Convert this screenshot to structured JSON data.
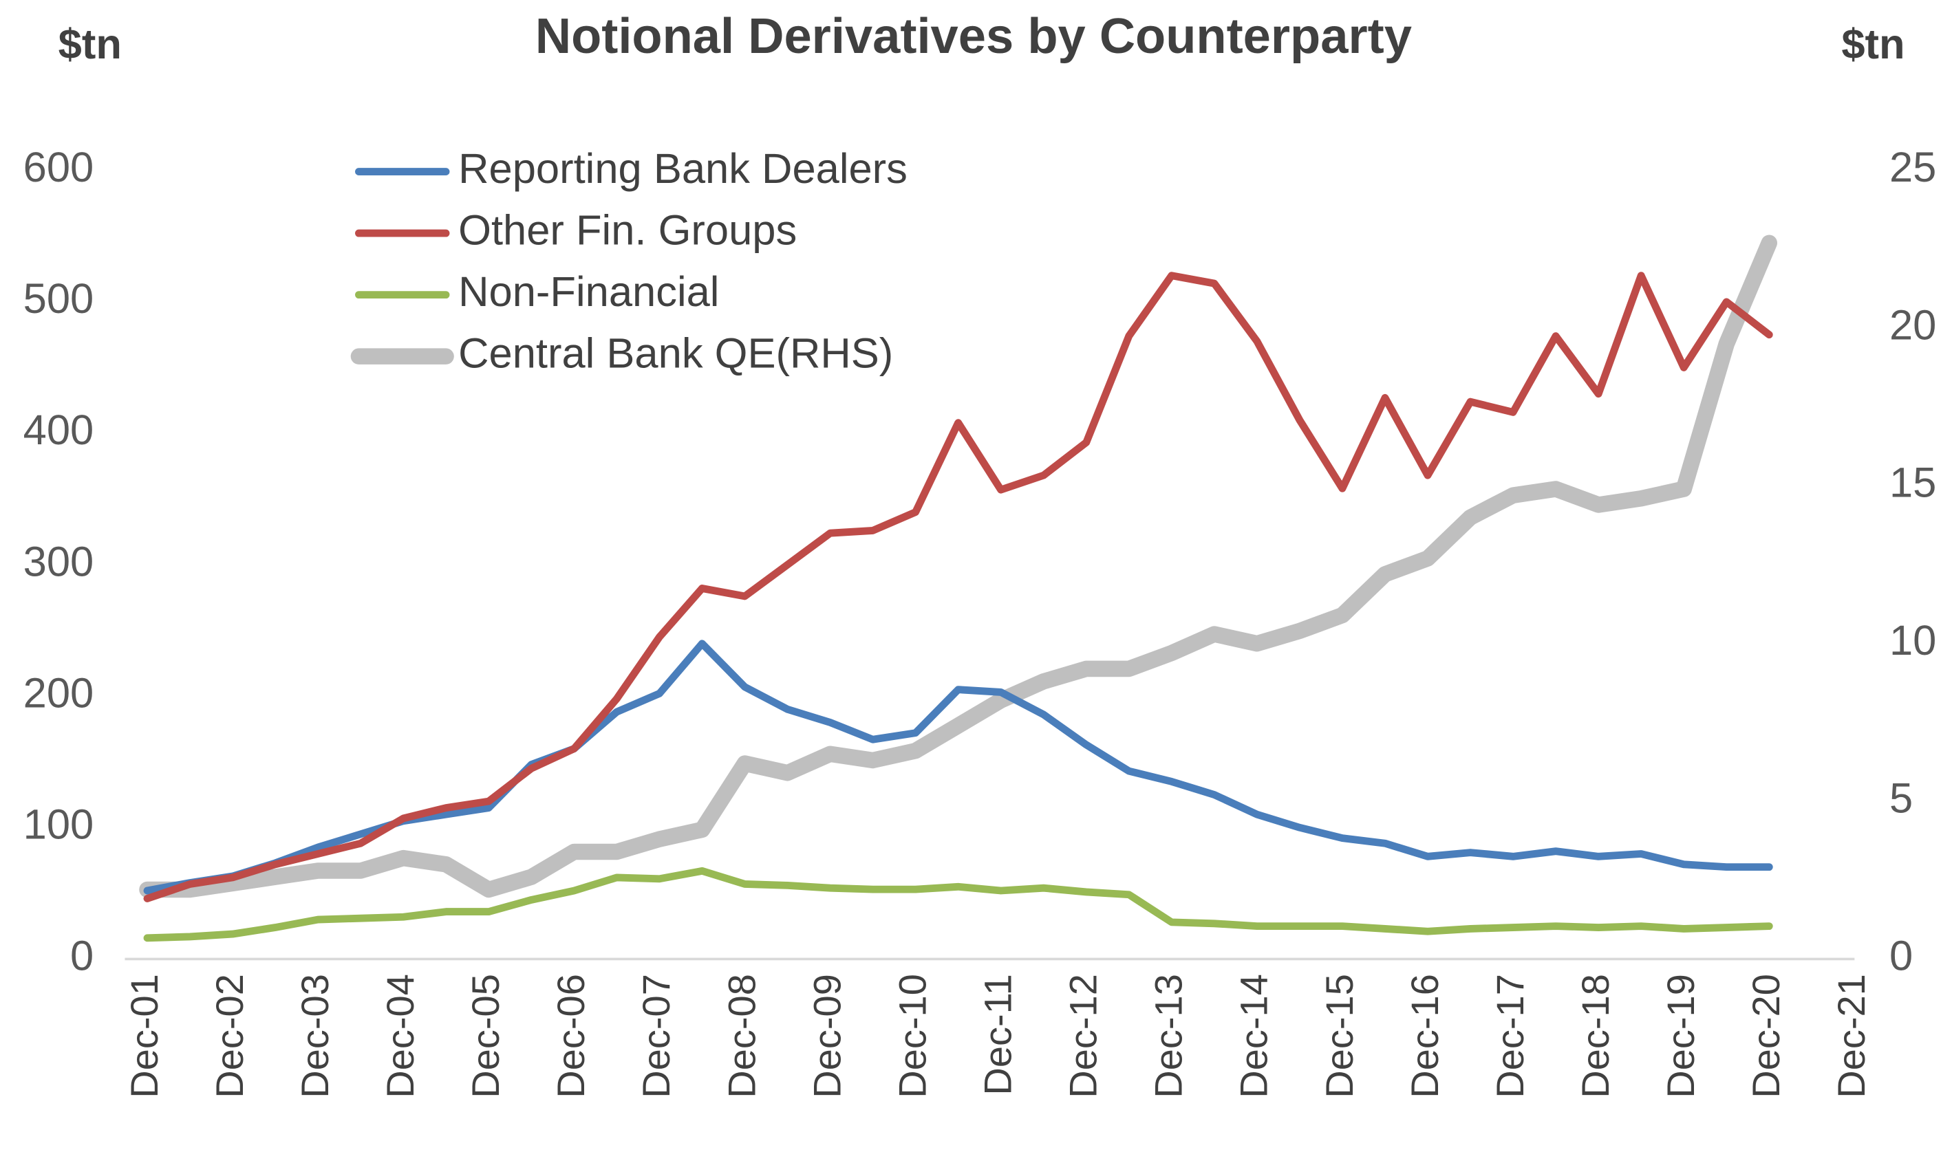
{
  "chart_data": {
    "type": "line",
    "title": "Notional Derivatives by Counterparty",
    "ylabel": "$tn",
    "y2label": "$tn",
    "categories": [
      "Dec-01",
      null,
      "Dec-02",
      null,
      "Dec-03",
      null,
      "Dec-04",
      null,
      "Dec-05",
      null,
      "Dec-06",
      null,
      "Dec-07",
      null,
      "Dec-08",
      null,
      "Dec-09",
      null,
      "Dec-10",
      null,
      "Dec-11",
      null,
      "Dec-12",
      null,
      "Dec-13",
      null,
      "Dec-14",
      null,
      "Dec-15",
      null,
      "Dec-16",
      null,
      "Dec-17",
      null,
      "Dec-18",
      null,
      "Dec-19",
      null,
      "Dec-20",
      null,
      "Dec-21"
    ],
    "series": [
      {
        "name": "Reporting Bank Dealers",
        "color": "#4a7ebb",
        "values": [
          52,
          58,
          63,
          73,
          85,
          95,
          105,
          110,
          115,
          148,
          160,
          188,
          202,
          240,
          207,
          190,
          180,
          167,
          172,
          205,
          203,
          186,
          163,
          143,
          135,
          125,
          110,
          100,
          92,
          88,
          78,
          81,
          78,
          82,
          78,
          80,
          72,
          70,
          70,
          null,
          null
        ]
      },
      {
        "name": "Other Fin. Groups",
        "color": "#be4b48",
        "values": [
          46,
          57,
          62,
          72,
          80,
          88,
          107,
          115,
          120,
          145,
          160,
          198,
          245,
          282,
          276,
          300,
          324,
          326,
          340,
          408,
          357,
          368,
          393,
          474,
          520,
          514,
          470,
          410,
          358,
          427,
          368,
          424,
          416,
          474,
          430,
          520,
          450,
          500,
          475,
          null,
          null
        ]
      },
      {
        "name": "Non-Financial",
        "color": "#98b954",
        "values": [
          16,
          17,
          19,
          24,
          30,
          31,
          32,
          36,
          36,
          45,
          52,
          62,
          61,
          67,
          57,
          56,
          54,
          53,
          53,
          55,
          52,
          54,
          51,
          49,
          28,
          27,
          25,
          25,
          25,
          23,
          21,
          23,
          24,
          25,
          24,
          25,
          23,
          24,
          25,
          null,
          null
        ]
      },
      {
        "name": "Central Bank QE(RHS)",
        "color": "#bfbfbf",
        "axis": "y2",
        "values": [
          2.2,
          2.2,
          2.4,
          2.6,
          2.8,
          2.8,
          3.2,
          3.0,
          2.2,
          2.6,
          3.4,
          3.4,
          3.8,
          4.1,
          6.2,
          5.9,
          6.5,
          6.3,
          6.6,
          7.4,
          8.2,
          8.8,
          9.2,
          9.2,
          9.7,
          10.3,
          10.0,
          10.4,
          10.9,
          12.2,
          12.7,
          14.0,
          14.7,
          14.9,
          14.4,
          14.6,
          14.9,
          19.5,
          22.7,
          null,
          null
        ]
      }
    ],
    "ylim": [
      0,
      600
    ],
    "yticks": [
      0,
      100,
      200,
      300,
      400,
      500,
      600
    ],
    "y2lim": [
      0,
      25
    ],
    "y2ticks": [
      0,
      5,
      10,
      15,
      20,
      25
    ],
    "grid": false,
    "legend": "top-left"
  }
}
